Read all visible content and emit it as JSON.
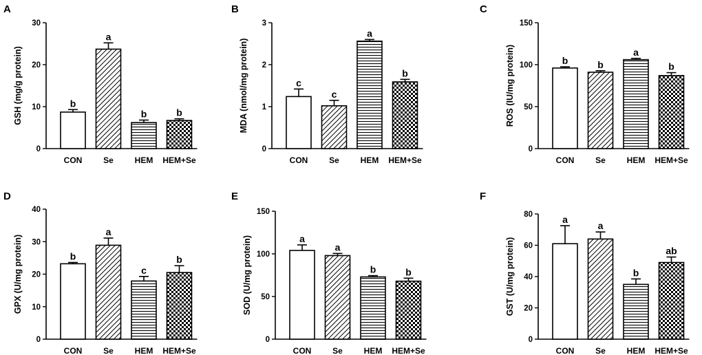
{
  "colors": {
    "ink": "#000000",
    "background": "#ffffff"
  },
  "chart_data": [
    {
      "panel": "A",
      "type": "bar",
      "categories": [
        "CON",
        "Se",
        "HEM",
        "HEM+Se"
      ],
      "values": [
        8.7,
        23.7,
        6.2,
        6.7
      ],
      "errors": [
        0.6,
        1.5,
        0.6,
        0.4
      ],
      "significance": [
        "b",
        "a",
        "b",
        "b"
      ],
      "patterns": [
        "none",
        "diag",
        "horiz",
        "check"
      ],
      "ylabel": "GSH (mg/g protein)",
      "ylim": [
        0,
        30
      ],
      "yticks": [
        0,
        10,
        20,
        30
      ],
      "grid": false
    },
    {
      "panel": "B",
      "type": "bar",
      "categories": [
        "CON",
        "Se",
        "HEM",
        "HEM+Se"
      ],
      "values": [
        1.24,
        1.02,
        2.56,
        1.59
      ],
      "errors": [
        0.18,
        0.13,
        0.04,
        0.06
      ],
      "significance": [
        "c",
        "c",
        "a",
        "b"
      ],
      "patterns": [
        "none",
        "diag",
        "horiz",
        "check"
      ],
      "ylabel": "MDA (nmol/mg protein)",
      "ylim": [
        0,
        3
      ],
      "yticks": [
        0,
        1,
        2,
        3
      ],
      "grid": false
    },
    {
      "panel": "C",
      "type": "bar",
      "categories": [
        "CON",
        "Se",
        "HEM",
        "HEM+Se"
      ],
      "values": [
        96,
        91,
        106,
        87
      ],
      "errors": [
        1.5,
        1.8,
        1.5,
        3.5
      ],
      "significance": [
        "b",
        "b",
        "a",
        "b"
      ],
      "patterns": [
        "none",
        "diag",
        "horiz",
        "check"
      ],
      "ylabel": "ROS (IU/mg protein)",
      "ylim": [
        0,
        150
      ],
      "yticks": [
        0,
        50,
        100,
        150
      ],
      "grid": false
    },
    {
      "panel": "D",
      "type": "bar",
      "categories": [
        "CON",
        "Se",
        "HEM",
        "HEM+Se"
      ],
      "values": [
        23.2,
        28.9,
        17.9,
        20.5
      ],
      "errors": [
        0.4,
        2.2,
        1.4,
        2.1
      ],
      "significance": [
        "b",
        "a",
        "c",
        "b"
      ],
      "patterns": [
        "none",
        "diag",
        "horiz",
        "check"
      ],
      "ylabel": "GPX (U/mg protein)",
      "ylim": [
        0,
        40
      ],
      "yticks": [
        0,
        10,
        20,
        30,
        40
      ],
      "grid": false
    },
    {
      "panel": "E",
      "type": "bar",
      "categories": [
        "CON",
        "Se",
        "HEM",
        "HEM+Se"
      ],
      "values": [
        104,
        98,
        73,
        68
      ],
      "errors": [
        6.5,
        2.5,
        1.5,
        3.5
      ],
      "significance": [
        "a",
        "a",
        "b",
        "b"
      ],
      "patterns": [
        "none",
        "diag",
        "horiz",
        "check"
      ],
      "ylabel": "SOD (U/mg protein)",
      "ylim": [
        0,
        150
      ],
      "yticks": [
        0,
        50,
        100,
        150
      ],
      "grid": false
    },
    {
      "panel": "F",
      "type": "bar",
      "categories": [
        "CON",
        "Se",
        "HEM",
        "HEM+Se"
      ],
      "values": [
        61,
        64,
        35,
        49
      ],
      "errors": [
        11.5,
        4.5,
        3.5,
        3.5
      ],
      "significance": [
        "a",
        "a",
        "b",
        "ab"
      ],
      "patterns": [
        "none",
        "diag",
        "horiz",
        "check"
      ],
      "ylabel": "GST (U/mg protein)",
      "ylim": [
        0,
        80
      ],
      "yticks": [
        0,
        20,
        40,
        60,
        80
      ],
      "grid": false
    }
  ]
}
